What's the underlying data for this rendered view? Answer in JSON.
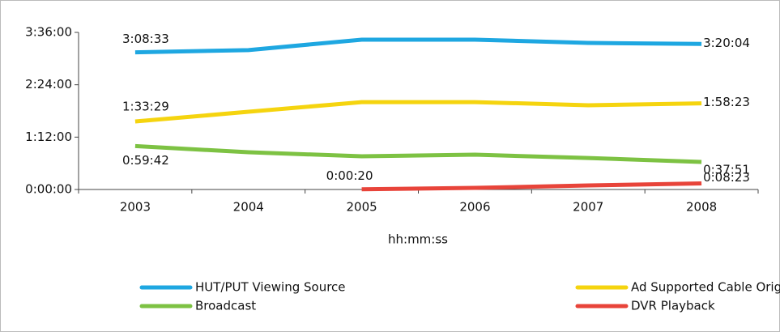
{
  "chart_data": {
    "type": "line",
    "x_label": "hh:mm:ss",
    "categories": [
      "2003",
      "2004",
      "2005",
      "2006",
      "2007",
      "2008"
    ],
    "ylim": [
      0,
      12960
    ],
    "yticks": [
      {
        "value": 0,
        "label": "0:00:00"
      },
      {
        "value": 4320,
        "label": "1:12:00"
      },
      {
        "value": 8640,
        "label": "2:24:00"
      },
      {
        "value": 12960,
        "label": "3:36:00"
      }
    ],
    "series": [
      {
        "name": "HUT/PUT Viewing Source",
        "color": "#1ea7e1",
        "values": [
          11313,
          11500,
          12360,
          12360,
          12090,
          12004
        ],
        "value_labels": [
          "3:08:33",
          null,
          null,
          null,
          null,
          "3:20:04"
        ]
      },
      {
        "name": "Ad Supported Cable Orig",
        "color": "#f5d40f",
        "values": [
          5609,
          6410,
          7210,
          7210,
          6950,
          7103
        ],
        "value_labels": [
          "1:33:29",
          null,
          null,
          null,
          null,
          "1:58:23"
        ]
      },
      {
        "name": "Broadcast",
        "color": "#7dc243",
        "values": [
          3582,
          3070,
          2740,
          2870,
          2600,
          2271
        ],
        "value_labels": [
          "0:59:42",
          null,
          null,
          null,
          null,
          "0:37:51"
        ]
      },
      {
        "name": "DVR Playback",
        "color": "#e8443a",
        "values": [
          null,
          null,
          20,
          130,
          330,
          503
        ],
        "value_labels": [
          null,
          null,
          "0:00:20",
          null,
          null,
          "0:08:23"
        ]
      }
    ]
  }
}
